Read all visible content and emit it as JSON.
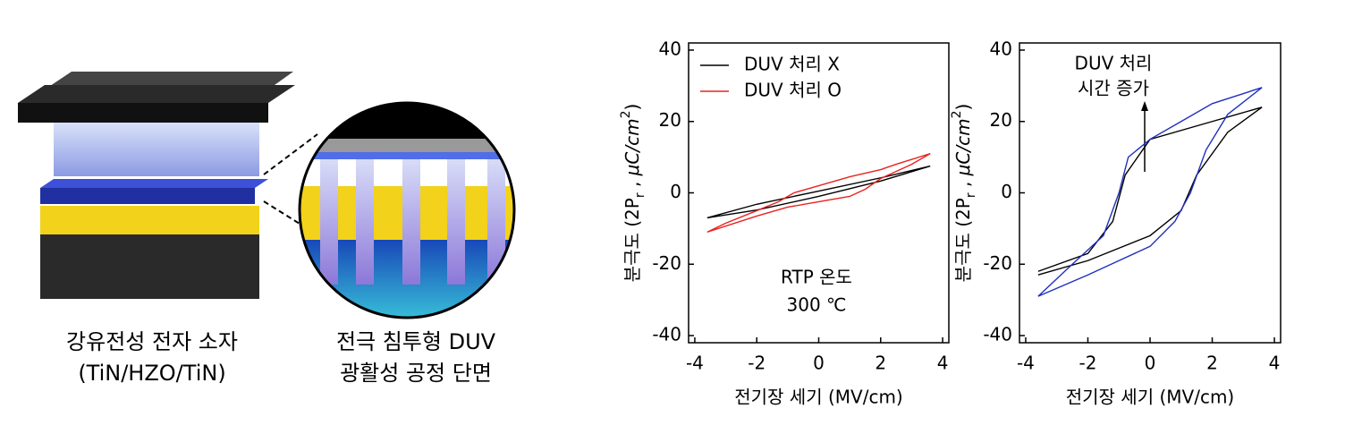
{
  "illustration": {
    "captions": [
      [
        "강유전성 전자 소자",
        "(TiN/HZO/TiN)"
      ],
      [
        "전극 침투형 DUV",
        "광활성 공정 단면"
      ]
    ]
  },
  "chart_data": [
    {
      "type": "line",
      "xlabel": "전기장 세기 (MV/cm)",
      "ylabel": [
        "분극도 (2P",
        "r",
        " , ",
        "μC/cm",
        "2",
        ")"
      ],
      "xlim": [
        -4.2,
        4.2
      ],
      "ylim": [
        -42,
        42
      ],
      "xticks": [
        -4,
        -2,
        0,
        2,
        4
      ],
      "yticks": [
        -40,
        -20,
        0,
        20,
        40
      ],
      "legend": "upper left",
      "annotations": [
        "RTP 온도",
        "300 ℃"
      ],
      "series": [
        {
          "name": "DUV 처리 X",
          "color": "#000000",
          "x": [
            -3.6,
            -2,
            0,
            2,
            3.6,
            2,
            0,
            -2,
            -3.6
          ],
          "values": [
            -7,
            -4.8,
            -1,
            3.3,
            7.5,
            4.2,
            0.5,
            -3.2,
            -7
          ]
        },
        {
          "name": "DUV 처리 O",
          "color": "#e8231f",
          "x": [
            -3.6,
            -2,
            -1,
            0,
            1,
            1.5,
            2,
            3,
            3.6,
            2.5,
            2,
            1,
            0,
            -0.8,
            -1.3,
            -2,
            -3,
            -3.6
          ],
          "values": [
            -11,
            -6.5,
            -4,
            -2.5,
            -1,
            1,
            4,
            8,
            11,
            8,
            6.5,
            4.5,
            2,
            0,
            -2.5,
            -5,
            -8.5,
            -11
          ]
        }
      ]
    },
    {
      "type": "line",
      "xlabel": "전기장 세기 (MV/cm)",
      "ylabel": [
        "분극도 (2P",
        "r",
        " , ",
        "μC/cm",
        "2",
        ")"
      ],
      "xlim": [
        -4.2,
        4.2
      ],
      "ylim": [
        -42,
        42
      ],
      "xticks": [
        -4,
        -2,
        0,
        2,
        4
      ],
      "yticks": [
        -40,
        -20,
        0,
        20,
        40
      ],
      "annotations": [
        "DUV 처리",
        "시간 증가"
      ],
      "series": [
        {
          "color": "#000000",
          "x": [
            -3.6,
            -2,
            0,
            1,
            1.5,
            2.5,
            3.6,
            2,
            0,
            -0.8,
            -1.2,
            -2,
            -3.6
          ],
          "values": [
            -23,
            -19,
            -12,
            -5,
            5,
            17,
            24,
            20,
            15,
            5,
            -8,
            -17,
            -22
          ]
        },
        {
          "color": "#1f2fbf",
          "x": [
            -3.6,
            -2,
            -1,
            0,
            0.8,
            1.3,
            1.8,
            2.5,
            3.6,
            2,
            1,
            0,
            -0.7,
            -1,
            -1.5,
            -2.5,
            -3.6
          ],
          "values": [
            -29,
            -23,
            -19,
            -15,
            -8,
            0,
            12,
            22,
            29.5,
            25,
            20,
            15,
            10,
            0,
            -12,
            -20,
            -29
          ]
        }
      ]
    }
  ]
}
